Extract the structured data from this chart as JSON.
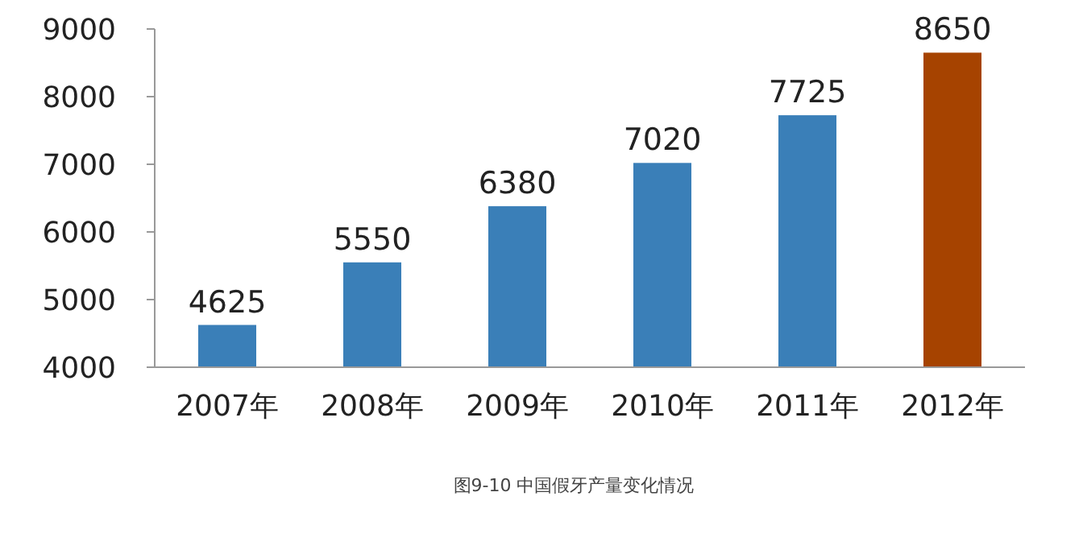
{
  "chart_data": {
    "type": "bar",
    "title": "图9-10 中国假牙产量变化情况",
    "categories": [
      "2007年",
      "2008年",
      "2009年",
      "2010年",
      "2011年",
      "2012年"
    ],
    "values": [
      4625,
      5550,
      6380,
      7020,
      7725,
      8650
    ],
    "colors": [
      "#3a7fb8",
      "#3a7fb8",
      "#3a7fb8",
      "#3a7fb8",
      "#3a7fb8",
      "#a64300"
    ],
    "ylim": [
      4000,
      9000
    ],
    "yticks": [
      4000,
      5000,
      6000,
      7000,
      8000,
      9000
    ],
    "data_labels": true,
    "grid": false
  }
}
